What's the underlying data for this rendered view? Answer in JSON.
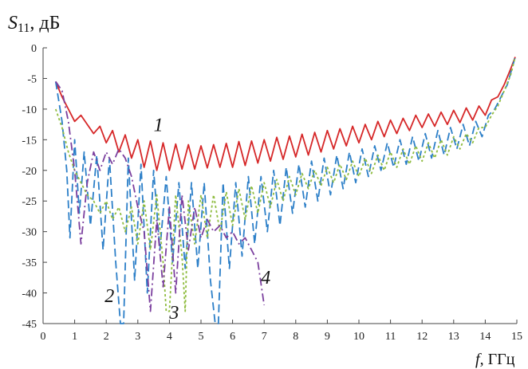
{
  "chart_data": {
    "type": "line",
    "title": "",
    "ylabel_main": "S",
    "ylabel_sub": "11",
    "ylabel_unit": ", дБ",
    "xlabel_var": "f",
    "xlabel_unit": ", ГГц",
    "xlim": [
      0,
      15
    ],
    "ylim": [
      -45,
      0
    ],
    "x_ticks": [
      0,
      1,
      2,
      3,
      4,
      5,
      6,
      7,
      8,
      9,
      10,
      11,
      12,
      13,
      14,
      15
    ],
    "y_ticks": [
      0,
      -5,
      -10,
      -15,
      -20,
      -25,
      -30,
      -35,
      -40,
      -45
    ],
    "grid": false,
    "series": [
      {
        "name": "1",
        "color": "#d62728",
        "dash": "solid",
        "label_pos": [
          3.5,
          -13.6
        ],
        "x": [
          0.4,
          0.6,
          0.8,
          1.0,
          1.2,
          1.4,
          1.6,
          1.8,
          2.0,
          2.2,
          2.4,
          2.6,
          2.8,
          3.0,
          3.2,
          3.4,
          3.6,
          3.8,
          4.0,
          4.2,
          4.4,
          4.6,
          4.8,
          5.0,
          5.2,
          5.4,
          5.6,
          5.8,
          6.0,
          6.2,
          6.4,
          6.6,
          6.8,
          7.0,
          7.2,
          7.4,
          7.6,
          7.8,
          8.0,
          8.2,
          8.4,
          8.6,
          8.8,
          9.0,
          9.2,
          9.4,
          9.6,
          9.8,
          10.0,
          10.2,
          10.4,
          10.6,
          10.8,
          11.0,
          11.2,
          11.4,
          11.6,
          11.8,
          12.0,
          12.2,
          12.4,
          12.6,
          12.8,
          13.0,
          13.2,
          13.4,
          13.6,
          13.8,
          14.0,
          14.2,
          14.4,
          14.6,
          14.8,
          14.95
        ],
        "y": [
          -5.5,
          -8,
          -10,
          -12,
          -11,
          -12.5,
          -14,
          -12.8,
          -15.5,
          -13.5,
          -17,
          -14.2,
          -18,
          -15,
          -19.5,
          -15.2,
          -20,
          -15.5,
          -20,
          -15.7,
          -19.8,
          -15.8,
          -19.8,
          -16,
          -19.6,
          -15.8,
          -19.5,
          -15.6,
          -19.5,
          -15.3,
          -19.2,
          -15.2,
          -18.8,
          -15,
          -18.5,
          -14.6,
          -18.2,
          -14.4,
          -17.8,
          -14.1,
          -17.5,
          -13.8,
          -17,
          -13.5,
          -16.5,
          -13.2,
          -16,
          -12.8,
          -15.5,
          -12.5,
          -15,
          -12,
          -14.5,
          -11.8,
          -14,
          -11.5,
          -13.5,
          -11,
          -13,
          -10.8,
          -12.8,
          -10.5,
          -12.5,
          -10.2,
          -12.2,
          -9.8,
          -11.8,
          -9.5,
          -11,
          -8.5,
          -8,
          -6,
          -3.5,
          -1.5
        ]
      },
      {
        "name": "2",
        "color": "#2c7fc8",
        "dash": "10,5",
        "label_pos": [
          1.95,
          -41.5
        ],
        "x": [
          0.4,
          0.6,
          0.75,
          0.85,
          1.0,
          1.15,
          1.3,
          1.5,
          1.7,
          1.9,
          2.1,
          2.3,
          2.45,
          2.55,
          2.7,
          2.9,
          3.1,
          3.3,
          3.5,
          3.7,
          3.9,
          4.1,
          4.3,
          4.5,
          4.7,
          4.9,
          5.1,
          5.3,
          5.45,
          5.55,
          5.7,
          5.9,
          6.1,
          6.3,
          6.5,
          6.7,
          6.9,
          7.1,
          7.3,
          7.5,
          7.7,
          7.9,
          8.1,
          8.3,
          8.5,
          8.7,
          8.9,
          9.1,
          9.3,
          9.5,
          9.7,
          9.9,
          10.1,
          10.3,
          10.5,
          10.7,
          10.9,
          11.1,
          11.3,
          11.5,
          11.7,
          11.9,
          12.1,
          12.3,
          12.5,
          12.7,
          12.9,
          13.1,
          13.3,
          13.5,
          13.7,
          13.9,
          14.1,
          14.3,
          14.5,
          14.7,
          14.95
        ],
        "y": [
          -5.5,
          -12,
          -20,
          -31,
          -15,
          -27,
          -17,
          -29,
          -17.5,
          -33,
          -18,
          -35,
          -45,
          -45,
          -18,
          -38,
          -19,
          -40,
          -20,
          -33,
          -21,
          -35,
          -22,
          -36,
          -22,
          -36,
          -22,
          -38,
          -45,
          -45,
          -22,
          -36,
          -22,
          -34,
          -21,
          -32,
          -21,
          -30,
          -20,
          -29,
          -19.5,
          -27,
          -19,
          -26,
          -18.5,
          -25,
          -18,
          -24,
          -17.5,
          -23,
          -17,
          -22,
          -16.5,
          -21,
          -16,
          -20,
          -15.5,
          -19.5,
          -15,
          -19,
          -14.5,
          -18.5,
          -14,
          -18,
          -13.5,
          -17.5,
          -13,
          -16.5,
          -12.5,
          -16,
          -12,
          -14.5,
          -11,
          -10,
          -8,
          -6,
          -1.5
        ]
      },
      {
        "name": "3",
        "color": "#8fbc3f",
        "dash": "3,3",
        "label_pos": [
          4.0,
          -44.2
        ],
        "x": [
          0.4,
          0.6,
          0.8,
          1.0,
          1.2,
          1.4,
          1.6,
          1.8,
          2.0,
          2.2,
          2.4,
          2.6,
          2.8,
          3.0,
          3.2,
          3.4,
          3.6,
          3.8,
          3.9,
          4.0,
          4.2,
          4.4,
          4.5,
          4.6,
          4.8,
          5.0,
          5.2,
          5.4,
          5.6,
          5.8,
          6.0,
          6.2,
          6.4,
          6.6,
          6.8,
          7.0,
          7.2,
          7.4,
          7.6,
          7.8,
          8.0,
          8.2,
          8.4,
          8.6,
          8.8,
          9.0,
          9.2,
          9.4,
          9.6,
          9.8,
          10.0,
          10.2,
          10.4,
          10.6,
          10.8,
          11.0,
          11.2,
          11.4,
          11.6,
          11.8,
          12.0,
          12.2,
          12.4,
          12.6,
          12.8,
          13.0,
          13.2,
          13.4,
          13.6,
          13.8,
          14.0,
          14.2,
          14.4,
          14.6,
          14.8,
          14.95
        ],
        "y": [
          -10,
          -13,
          -17,
          -20,
          -22,
          -24,
          -25,
          -27,
          -25,
          -28,
          -26,
          -30,
          -26,
          -32,
          -25,
          -33,
          -24,
          -35,
          -43,
          -43,
          -24,
          -34,
          -43,
          -25,
          -32,
          -24,
          -31,
          -24,
          -30,
          -23.5,
          -29,
          -23,
          -28,
          -22.5,
          -27,
          -22,
          -26,
          -21.5,
          -25,
          -21,
          -24,
          -20.5,
          -23,
          -20,
          -22.5,
          -19.5,
          -22,
          -19,
          -21.5,
          -18.5,
          -21,
          -18,
          -20.5,
          -17.5,
          -20,
          -17,
          -19.5,
          -16.5,
          -19,
          -16,
          -18.5,
          -15.5,
          -18,
          -15,
          -17.5,
          -14.5,
          -16.5,
          -14,
          -15.5,
          -13,
          -13,
          -11,
          -9.5,
          -7,
          -4.5,
          -1.5
        ]
      },
      {
        "name": "4",
        "color": "#7b3f9e",
        "dash": "10,4,2,4",
        "label_pos": [
          6.9,
          -38.5
        ],
        "x": [
          0.4,
          0.6,
          0.8,
          1.0,
          1.2,
          1.4,
          1.6,
          1.8,
          2.0,
          2.2,
          2.4,
          2.6,
          2.8,
          3.0,
          3.2,
          3.4,
          3.6,
          3.8,
          4.0,
          4.2,
          4.4,
          4.6,
          4.8,
          5.0,
          5.2,
          5.4,
          5.6,
          5.8,
          6.0,
          6.2,
          6.4,
          6.6,
          6.8,
          7.0
        ],
        "y": [
          -5.5,
          -7,
          -12,
          -20,
          -32,
          -22,
          -17,
          -20,
          -17,
          -19,
          -16.5,
          -18,
          -21,
          -26,
          -30,
          -43,
          -28,
          -39,
          -26,
          -40,
          -24,
          -33,
          -26,
          -31,
          -28,
          -30,
          -29,
          -31,
          -30,
          -32,
          -31,
          -33,
          -35,
          -42
        ]
      }
    ]
  }
}
